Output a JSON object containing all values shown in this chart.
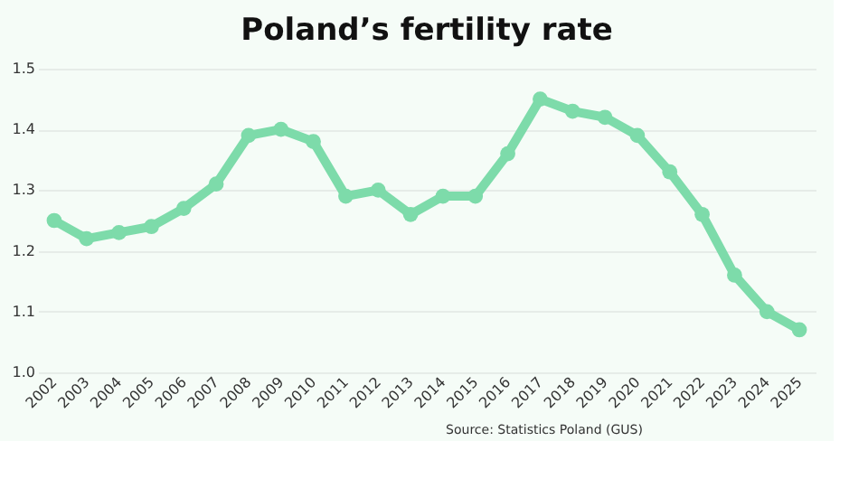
{
  "chart_data": {
    "type": "line",
    "title": "Poland’s fertility rate",
    "categories": [
      "2002",
      "2003",
      "2004",
      "2005",
      "2006",
      "2007",
      "2008",
      "2009",
      "2010",
      "2011",
      "2012",
      "2013",
      "2014",
      "2015",
      "2016",
      "2017",
      "2018",
      "2019",
      "2020",
      "2021",
      "2022",
      "2023",
      "2024",
      "2025"
    ],
    "series": [
      {
        "color": "#7ddbaa",
        "values": [
          1.25,
          1.22,
          1.23,
          1.24,
          1.27,
          1.31,
          1.39,
          1.4,
          1.38,
          1.29,
          1.3,
          1.26,
          1.29,
          1.29,
          1.36,
          1.45,
          1.43,
          1.42,
          1.39,
          1.33,
          1.26,
          1.16,
          1.1,
          1.07
        ]
      }
    ],
    "ylim": [
      1.0,
      1.5
    ],
    "yticks": [
      {
        "value": 1.0,
        "label": "1.0"
      },
      1.1,
      1.2,
      1.3,
      1.4,
      1.5
    ],
    "grid": "y",
    "marker": "circle",
    "line_style": "solid",
    "annotations": [
      "Source: Statistics Poland (GUS)"
    ]
  }
}
